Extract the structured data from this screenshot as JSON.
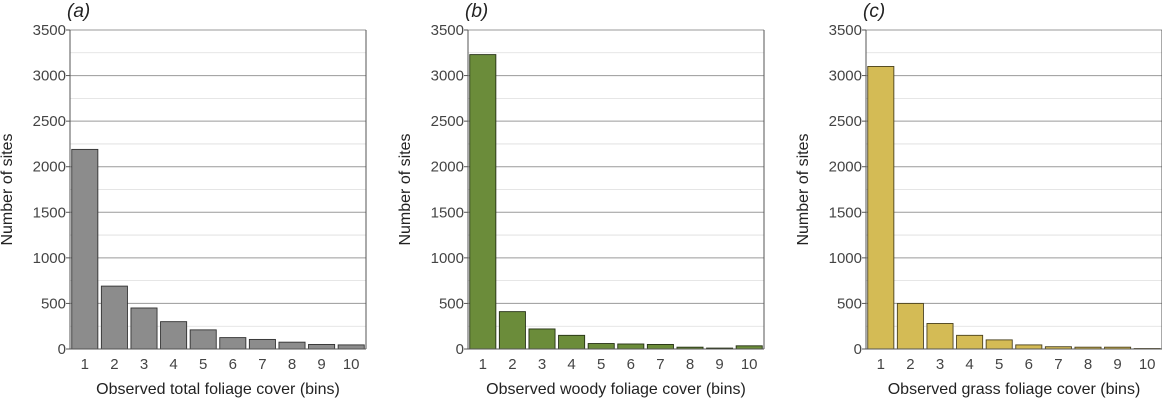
{
  "chart_data": [
    {
      "type": "bar",
      "panel_label": "(a)",
      "xlabel": "Observed total foliage cover (bins)",
      "ylabel": "Number of sites",
      "categories": [
        "1",
        "2",
        "3",
        "4",
        "5",
        "6",
        "7",
        "8",
        "9",
        "10"
      ],
      "values": [
        2190,
        690,
        450,
        300,
        210,
        125,
        105,
        75,
        50,
        45
      ],
      "ylim": [
        0,
        3500
      ],
      "yticks": [
        0,
        500,
        1000,
        1500,
        2000,
        2500,
        3000,
        3500
      ],
      "color": "#8c8c8c",
      "grid": true
    },
    {
      "type": "bar",
      "panel_label": "(b)",
      "xlabel": "Observed woody foliage cover (bins)",
      "ylabel": "Number of sites",
      "categories": [
        "1",
        "2",
        "3",
        "4",
        "5",
        "6",
        "7",
        "8",
        "9",
        "10"
      ],
      "values": [
        3230,
        410,
        220,
        150,
        60,
        55,
        50,
        20,
        10,
        35
      ],
      "ylim": [
        0,
        3500
      ],
      "yticks": [
        0,
        500,
        1000,
        1500,
        2000,
        2500,
        3000,
        3500
      ],
      "color": "#6b8c3a",
      "grid": true
    },
    {
      "type": "bar",
      "panel_label": "(c)",
      "xlabel": "Observed grass foliage cover (bins)",
      "ylabel": "Number of sites",
      "categories": [
        "1",
        "2",
        "3",
        "4",
        "5",
        "6",
        "7",
        "8",
        "9",
        "10"
      ],
      "values": [
        3100,
        500,
        280,
        150,
        100,
        45,
        25,
        20,
        20,
        5
      ],
      "ylim": [
        0,
        3500
      ],
      "yticks": [
        0,
        500,
        1000,
        1500,
        2000,
        2500,
        3000,
        3500
      ],
      "color": "#d4bb55",
      "grid": true
    }
  ]
}
